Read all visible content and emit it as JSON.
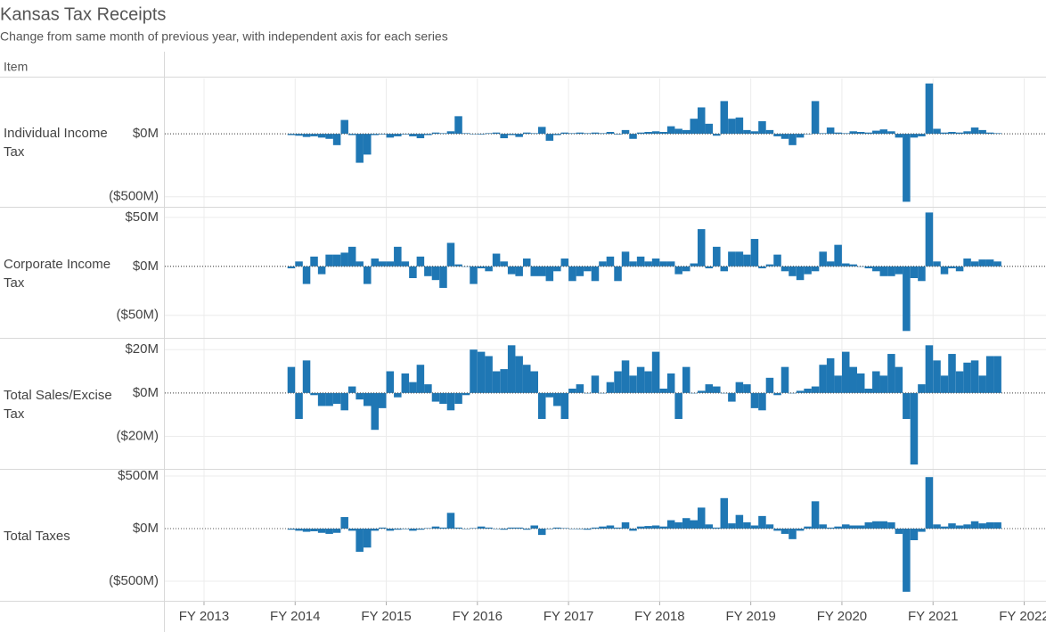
{
  "chart_data": {
    "type": "bar",
    "title": "Kansas Tax Receipts",
    "subtitle": "Change from same month of previous year, with independent axis for each series",
    "row_header": "Item",
    "color": "#1f77b4",
    "xlim": [
      2012.57,
      2022.22
    ],
    "xticks": [
      {
        "value": 2013,
        "label": "FY 2013"
      },
      {
        "value": 2014,
        "label": "FY 2014"
      },
      {
        "value": 2015,
        "label": "FY 2015"
      },
      {
        "value": 2016,
        "label": "FY 2016"
      },
      {
        "value": 2017,
        "label": "FY 2017"
      },
      {
        "value": 2018,
        "label": "FY 2018"
      },
      {
        "value": 2019,
        "label": "FY 2019"
      },
      {
        "value": 2020,
        "label": "FY 2020"
      },
      {
        "value": 2021,
        "label": "FY 2021"
      },
      {
        "value": 2022,
        "label": "FY 2022"
      }
    ],
    "x": [
      2013.958,
      2014.042,
      2014.125,
      2014.208,
      2014.292,
      2014.375,
      2014.458,
      2014.542,
      2014.625,
      2014.708,
      2014.792,
      2014.875,
      2014.958,
      2015.042,
      2015.125,
      2015.208,
      2015.292,
      2015.375,
      2015.458,
      2015.542,
      2015.625,
      2015.708,
      2015.792,
      2015.875,
      2015.958,
      2016.042,
      2016.125,
      2016.208,
      2016.292,
      2016.375,
      2016.458,
      2016.542,
      2016.625,
      2016.708,
      2016.792,
      2016.875,
      2016.958,
      2017.042,
      2017.125,
      2017.208,
      2017.292,
      2017.375,
      2017.458,
      2017.542,
      2017.625,
      2017.708,
      2017.792,
      2017.875,
      2017.958,
      2018.042,
      2018.125,
      2018.208,
      2018.292,
      2018.375,
      2018.458,
      2018.542,
      2018.625,
      2018.708,
      2018.792,
      2018.875,
      2018.958,
      2019.042,
      2019.125,
      2019.208,
      2019.292,
      2019.375,
      2019.458,
      2019.542,
      2019.625,
      2019.708,
      2019.792,
      2019.875,
      2019.958,
      2020.042,
      2020.125,
      2020.208,
      2020.292,
      2020.375,
      2020.458,
      2020.542,
      2020.625,
      2020.708,
      2020.792,
      2020.875,
      2020.958,
      2021.042,
      2021.125,
      2021.208,
      2021.292,
      2021.375,
      2021.458,
      2021.542,
      2021.625,
      2021.708
    ],
    "panels": [
      {
        "label": "Individual Income Tax",
        "ylim": [
          -580,
          440
        ],
        "yticks": [
          {
            "value": 0,
            "label": "$0M"
          },
          {
            "value": -500,
            "label": "($500M)"
          }
        ],
        "values": [
          -10,
          -15,
          -25,
          -20,
          -30,
          -40,
          -90,
          110,
          -10,
          -230,
          -165,
          -10,
          -5,
          -30,
          -20,
          -5,
          -20,
          -35,
          -10,
          10,
          5,
          20,
          140,
          5,
          0,
          -5,
          5,
          10,
          -35,
          -10,
          -25,
          10,
          5,
          55,
          -55,
          -10,
          10,
          5,
          10,
          5,
          10,
          5,
          15,
          -5,
          30,
          -40,
          10,
          15,
          20,
          15,
          60,
          40,
          30,
          120,
          210,
          80,
          -15,
          260,
          120,
          130,
          30,
          20,
          100,
          30,
          -20,
          -40,
          -90,
          -30,
          0,
          260,
          5,
          50,
          10,
          5,
          20,
          15,
          10,
          25,
          35,
          20,
          -30,
          -540,
          -30,
          -20,
          400,
          40,
          10,
          15,
          10,
          20,
          50,
          30,
          10,
          5
        ]
      },
      {
        "label": "Corporate Income Tax",
        "ylim": [
          -73,
          59
        ],
        "yticks": [
          {
            "value": 50,
            "label": "$50M"
          },
          {
            "value": 0,
            "label": "$0M"
          },
          {
            "value": -50,
            "label": "($50M)"
          }
        ],
        "values": [
          -2,
          5,
          -18,
          10,
          -8,
          12,
          12,
          14,
          20,
          5,
          -18,
          8,
          5,
          5,
          20,
          5,
          -12,
          10,
          -10,
          -14,
          -22,
          24,
          2,
          0,
          -18,
          -2,
          -5,
          13,
          5,
          -8,
          -10,
          8,
          -10,
          -10,
          -15,
          -5,
          8,
          -15,
          -10,
          -5,
          -15,
          5,
          10,
          -15,
          15,
          5,
          10,
          5,
          8,
          5,
          5,
          -8,
          -5,
          3,
          38,
          -2,
          20,
          -5,
          15,
          15,
          12,
          28,
          -2,
          2,
          12,
          -5,
          -10,
          -14,
          -8,
          -5,
          15,
          5,
          22,
          3,
          2,
          0,
          -2,
          -5,
          -10,
          -10,
          -8,
          -66,
          -12,
          -15,
          55,
          5,
          -8,
          -2,
          -5,
          8,
          5,
          7,
          7,
          5
        ]
      },
      {
        "label": "Total Sales/Excise Tax",
        "ylim": [
          -35,
          24.6
        ],
        "yticks": [
          {
            "value": 20,
            "label": "$20M"
          },
          {
            "value": 0,
            "label": "$0M"
          },
          {
            "value": -20,
            "label": "($20M)"
          }
        ],
        "values": [
          12,
          -12,
          15,
          -1,
          -6,
          -6,
          -5,
          -8,
          3,
          -3,
          -6,
          -17,
          -7,
          10,
          -2,
          9,
          5,
          13,
          4,
          -4,
          -5,
          -8,
          -5,
          -1,
          20,
          19,
          17,
          10,
          11,
          22,
          17,
          13,
          10,
          -12,
          -2,
          -6,
          -12,
          2,
          4,
          0,
          8,
          0,
          5,
          10,
          15,
          8,
          12,
          10,
          19,
          2,
          9,
          -12,
          12,
          0,
          1,
          4,
          3,
          0,
          -4,
          5,
          4,
          -7,
          -8,
          7,
          -1,
          12,
          0,
          1,
          2,
          3,
          13,
          16,
          8,
          19,
          12,
          9,
          2,
          10,
          8,
          18,
          12,
          -12,
          -33,
          4,
          22,
          15,
          8,
          18,
          10,
          14,
          15,
          8,
          17,
          17
        ]
      },
      {
        "label": "Total Taxes",
        "ylim": [
          -686,
          551
        ],
        "yticks": [
          {
            "value": 500,
            "label": "$500M"
          },
          {
            "value": 0,
            "label": "$0M"
          },
          {
            "value": -500,
            "label": "($500M)"
          }
        ],
        "values": [
          -10,
          -20,
          -30,
          -25,
          -40,
          -50,
          -40,
          110,
          -20,
          -220,
          -180,
          -20,
          10,
          -20,
          -10,
          -5,
          -20,
          -10,
          5,
          20,
          10,
          150,
          10,
          0,
          5,
          20,
          10,
          0,
          -10,
          10,
          10,
          -10,
          30,
          -60,
          -5,
          10,
          5,
          0,
          -5,
          -10,
          10,
          20,
          30,
          10,
          60,
          -20,
          20,
          25,
          30,
          20,
          80,
          60,
          100,
          80,
          200,
          40,
          10,
          290,
          50,
          130,
          60,
          30,
          120,
          40,
          -20,
          -50,
          -100,
          -20,
          20,
          260,
          40,
          10,
          20,
          40,
          30,
          30,
          60,
          70,
          70,
          60,
          -50,
          -600,
          -110,
          -30,
          490,
          40,
          20,
          50,
          30,
          40,
          70,
          50,
          60,
          60
        ]
      }
    ]
  }
}
